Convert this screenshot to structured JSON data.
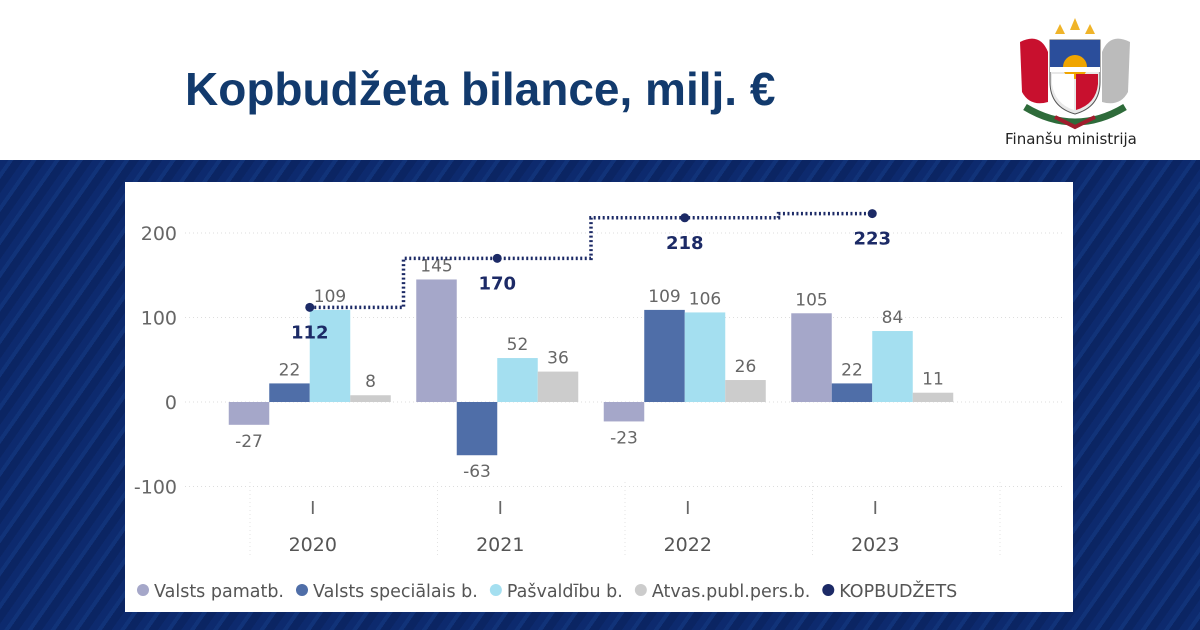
{
  "header": {
    "title": "Kopbudžeta bilance, milj. €",
    "logo_text": "Finanšu ministrija"
  },
  "chart_data": {
    "type": "bar",
    "title": "",
    "categories": [
      "2020",
      "2021",
      "2022",
      "2023"
    ],
    "category_tick": "I",
    "ylim": [
      -100,
      200
    ],
    "yticks": [
      -100,
      0,
      100,
      200
    ],
    "grid": true,
    "legend_position": "bottom-left",
    "series": [
      {
        "name": "Valsts pamatb.",
        "type": "bar",
        "color": "#a5a7c9",
        "values": [
          -27,
          145,
          -23,
          105
        ]
      },
      {
        "name": "Valsts speciālais b.",
        "type": "bar",
        "color": "#4f6ea8",
        "values": [
          22,
          -63,
          109,
          22
        ]
      },
      {
        "name": "Pašvaldību b.",
        "type": "bar",
        "color": "#a4dff0",
        "values": [
          109,
          52,
          106,
          84
        ]
      },
      {
        "name": "Atvas.publ.pers.b.",
        "type": "bar",
        "color": "#cccccc",
        "values": [
          8,
          36,
          26,
          11
        ]
      },
      {
        "name": "KOPBUDŽETS",
        "type": "line",
        "style": "dotted-step",
        "color": "#1c2a66",
        "values": [
          112,
          170,
          218,
          223
        ]
      }
    ]
  }
}
